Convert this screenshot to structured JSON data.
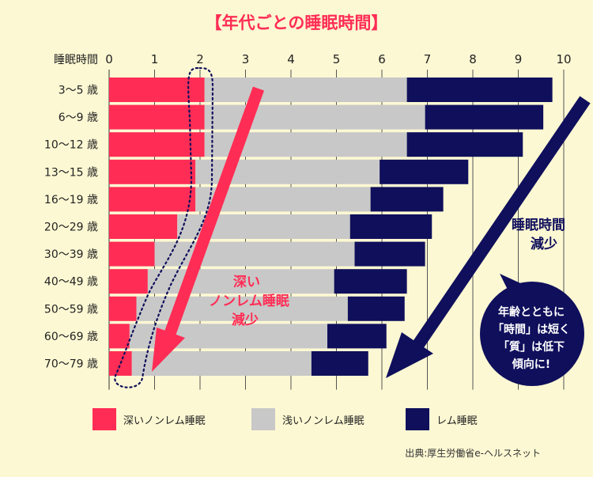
{
  "chart_data": {
    "type": "bar",
    "stacked": true,
    "orientation": "horizontal",
    "title": "【年代ごとの睡眠時間】",
    "xlabel": "睡眠時間",
    "xlim": [
      0,
      10
    ],
    "x_ticks": [
      "0",
      "1",
      "2",
      "3",
      "4",
      "5",
      "6",
      "7",
      "8",
      "9",
      "10"
    ],
    "grid": true,
    "categories": [
      "3～5 歳",
      "6～9 歳",
      "10～12 歳",
      "13～15 歳",
      "16～19 歳",
      "20～29 歳",
      "30～39 歳",
      "40～49 歳",
      "50～59 歳",
      "60～69 歳",
      "70～79 歳"
    ],
    "series": [
      {
        "name": "深いノンレム睡眠",
        "color": "#ff2d55",
        "values": [
          2.1,
          2.1,
          2.1,
          1.9,
          1.9,
          1.5,
          1.0,
          0.85,
          0.6,
          0.45,
          0.5
        ]
      },
      {
        "name": "浅いノンレム睡眠",
        "color": "#c8c8c8",
        "values": [
          4.45,
          4.85,
          4.45,
          4.05,
          3.85,
          3.8,
          4.4,
          4.1,
          4.65,
          4.35,
          3.95
        ]
      },
      {
        "name": "レム睡眠",
        "color": "#0f0f5c",
        "values": [
          3.2,
          2.6,
          2.55,
          1.95,
          1.6,
          1.8,
          1.55,
          1.6,
          1.25,
          1.3,
          1.25
        ]
      }
    ],
    "legend": "bottom",
    "annotations": {
      "deep_line1": "深い",
      "deep_line2": "ノンレム睡眠",
      "deep_line3": "減少",
      "rem_line1": "睡眠時間",
      "rem_line2": "減少",
      "bubble_line1": "年齢とともに",
      "bubble_line2": "「時間」は短く",
      "bubble_line3": "「質」は低下",
      "bubble_line4": "傾向に!"
    },
    "source": "出典:厚生労働省e-ヘルスネット"
  }
}
